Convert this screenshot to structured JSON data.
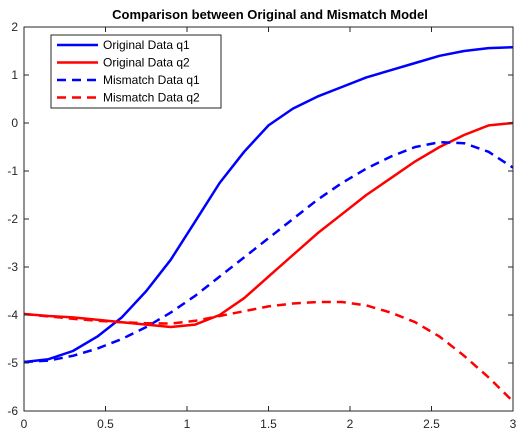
{
  "chart_data": {
    "type": "line",
    "title": "Comparison between Original and Mismatch Model",
    "xlabel": "",
    "ylabel": "",
    "xlim": [
      0,
      3
    ],
    "ylim": [
      -6,
      2
    ],
    "xticks": [
      0,
      0.5,
      1,
      1.5,
      2,
      2.5,
      3
    ],
    "xtick_labels": [
      "0",
      "0.5",
      "1",
      "1.5",
      "2",
      "2.5",
      "3"
    ],
    "yticks": [
      -6,
      -5,
      -4,
      -3,
      -2,
      -1,
      0,
      1,
      2
    ],
    "ytick_labels": [
      "-6",
      "-5",
      "-4",
      "-3",
      "-2",
      "-1",
      "0",
      "1",
      "2"
    ],
    "grid": false,
    "legend_position": "top-left",
    "series": [
      {
        "name": "Original Data q1",
        "color": "#0000ff",
        "style": "solid",
        "x": [
          0,
          0.15,
          0.3,
          0.45,
          0.6,
          0.75,
          0.9,
          1.05,
          1.2,
          1.35,
          1.5,
          1.65,
          1.8,
          1.95,
          2.1,
          2.25,
          2.4,
          2.55,
          2.7,
          2.85,
          3.0
        ],
        "y": [
          -4.98,
          -4.92,
          -4.75,
          -4.45,
          -4.05,
          -3.5,
          -2.85,
          -2.05,
          -1.25,
          -0.6,
          -0.05,
          0.3,
          0.55,
          0.75,
          0.95,
          1.1,
          1.25,
          1.4,
          1.5,
          1.56,
          1.58
        ]
      },
      {
        "name": "Original Data q2",
        "color": "#ff0000",
        "style": "solid",
        "x": [
          0,
          0.15,
          0.3,
          0.45,
          0.6,
          0.75,
          0.9,
          1.05,
          1.2,
          1.35,
          1.5,
          1.65,
          1.8,
          1.95,
          2.1,
          2.25,
          2.4,
          2.55,
          2.7,
          2.85,
          3.0
        ],
        "y": [
          -3.98,
          -4.02,
          -4.05,
          -4.1,
          -4.15,
          -4.2,
          -4.25,
          -4.2,
          -4.0,
          -3.65,
          -3.2,
          -2.75,
          -2.3,
          -1.9,
          -1.5,
          -1.15,
          -0.8,
          -0.5,
          -0.25,
          -0.05,
          0.0
        ]
      },
      {
        "name": "Mismatch Data q1",
        "color": "#0000ff",
        "style": "dashed",
        "x": [
          0,
          0.15,
          0.3,
          0.45,
          0.6,
          0.75,
          0.9,
          1.05,
          1.2,
          1.35,
          1.5,
          1.65,
          1.8,
          1.95,
          2.1,
          2.25,
          2.4,
          2.55,
          2.7,
          2.85,
          3.0
        ],
        "y": [
          -4.98,
          -4.95,
          -4.85,
          -4.7,
          -4.5,
          -4.25,
          -3.95,
          -3.6,
          -3.2,
          -2.8,
          -2.4,
          -2.0,
          -1.6,
          -1.25,
          -0.95,
          -0.7,
          -0.5,
          -0.4,
          -0.42,
          -0.6,
          -0.93
        ]
      },
      {
        "name": "Mismatch Data q2",
        "color": "#ff0000",
        "style": "dashed",
        "x": [
          0,
          0.15,
          0.3,
          0.45,
          0.6,
          0.75,
          0.9,
          1.05,
          1.2,
          1.35,
          1.5,
          1.65,
          1.8,
          1.95,
          2.1,
          2.25,
          2.4,
          2.55,
          2.7,
          2.85,
          3.0
        ],
        "y": [
          -3.98,
          -4.03,
          -4.08,
          -4.12,
          -4.15,
          -4.17,
          -4.18,
          -4.12,
          -4.02,
          -3.92,
          -3.82,
          -3.76,
          -3.73,
          -3.73,
          -3.8,
          -3.95,
          -4.15,
          -4.45,
          -4.85,
          -5.3,
          -5.8
        ]
      }
    ]
  }
}
